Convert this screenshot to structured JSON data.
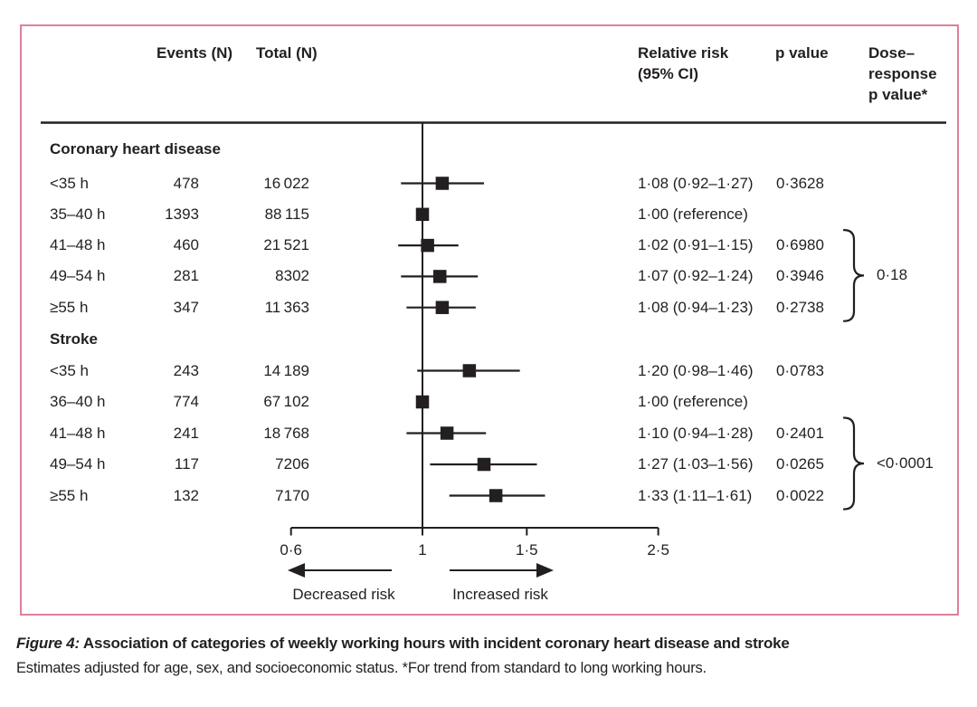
{
  "header": {
    "events": "Events (N)",
    "total": "Total (N)",
    "relative_risk_line1": "Relative risk",
    "relative_risk_line2": "(95% CI)",
    "p_value": "p value",
    "dose_line1": "Dose–",
    "dose_line2": "response",
    "dose_line3": "p value*"
  },
  "chart_data": {
    "type": "forest",
    "x_scale": "log",
    "x_axis": {
      "ticks": [
        0.6,
        1,
        1.5,
        2.5
      ],
      "tick_labels": [
        "0·6",
        "1",
        "1·5",
        "2·5"
      ],
      "reference_line": 1,
      "range": [
        0.6,
        2.5
      ]
    },
    "annotations": {
      "decreased": "Decreased risk",
      "increased": "Increased risk"
    },
    "sections": [
      {
        "title": "Coronary heart disease",
        "rows": [
          {
            "label": "<35 h",
            "events": "478",
            "total": "16 022",
            "rr": 1.08,
            "ci_low": 0.92,
            "ci_high": 1.27,
            "rr_text": "1·08 (0·92–1·27)",
            "p_value": "0·3628"
          },
          {
            "label": "35–40 h",
            "events": "1393",
            "total": "88 115",
            "rr": 1.0,
            "ci_low": null,
            "ci_high": null,
            "rr_text": "1·00 (reference)",
            "p_value": ""
          },
          {
            "label": "41–48 h",
            "events": "460",
            "total": "21 521",
            "rr": 1.02,
            "ci_low": 0.91,
            "ci_high": 1.15,
            "rr_text": "1·02 (0·91–1·15)",
            "p_value": "0·6980"
          },
          {
            "label": "49–54 h",
            "events": "281",
            "total": "8302",
            "rr": 1.07,
            "ci_low": 0.92,
            "ci_high": 1.24,
            "rr_text": "1·07 (0·92–1·24)",
            "p_value": "0·3946"
          },
          {
            "label": "≥55 h",
            "events": "347",
            "total": "11 363",
            "rr": 1.08,
            "ci_low": 0.94,
            "ci_high": 1.23,
            "rr_text": "1·08 (0·94–1·23)",
            "p_value": "0·2738"
          }
        ],
        "dose_response_p": "0·18",
        "brace_rows": [
          2,
          4
        ]
      },
      {
        "title": "Stroke",
        "rows": [
          {
            "label": "<35 h",
            "events": "243",
            "total": "14 189",
            "rr": 1.2,
            "ci_low": 0.98,
            "ci_high": 1.46,
            "rr_text": "1·20 (0·98–1·46)",
            "p_value": "0·0783"
          },
          {
            "label": "36–40 h",
            "events": "774",
            "total": "67 102",
            "rr": 1.0,
            "ci_low": null,
            "ci_high": null,
            "rr_text": "1·00 (reference)",
            "p_value": ""
          },
          {
            "label": "41–48 h",
            "events": "241",
            "total": "18 768",
            "rr": 1.1,
            "ci_low": 0.94,
            "ci_high": 1.28,
            "rr_text": "1·10 (0·94–1·28)",
            "p_value": "0·2401"
          },
          {
            "label": "49–54 h",
            "events": "117",
            "total": "7206",
            "rr": 1.27,
            "ci_low": 1.03,
            "ci_high": 1.56,
            "rr_text": "1·27 (1·03–1·56)",
            "p_value": "0·0265"
          },
          {
            "label": "≥55 h",
            "events": "132",
            "total": "7170",
            "rr": 1.33,
            "ci_low": 1.11,
            "ci_high": 1.61,
            "rr_text": "1·33 (1·11–1·61)",
            "p_value": "0·0022"
          }
        ],
        "dose_response_p": "<0·0001",
        "brace_rows": [
          2,
          4
        ]
      }
    ]
  },
  "caption": {
    "label": "Figure 4:",
    "title": " Association of categories of weekly working hours with incident coronary heart disease and stroke",
    "body": "Estimates adjusted for age, sex, and socioeconomic status. *For trend from standard to long working hours."
  },
  "colors": {
    "frame": "#df8098",
    "ink": "#231f20"
  }
}
